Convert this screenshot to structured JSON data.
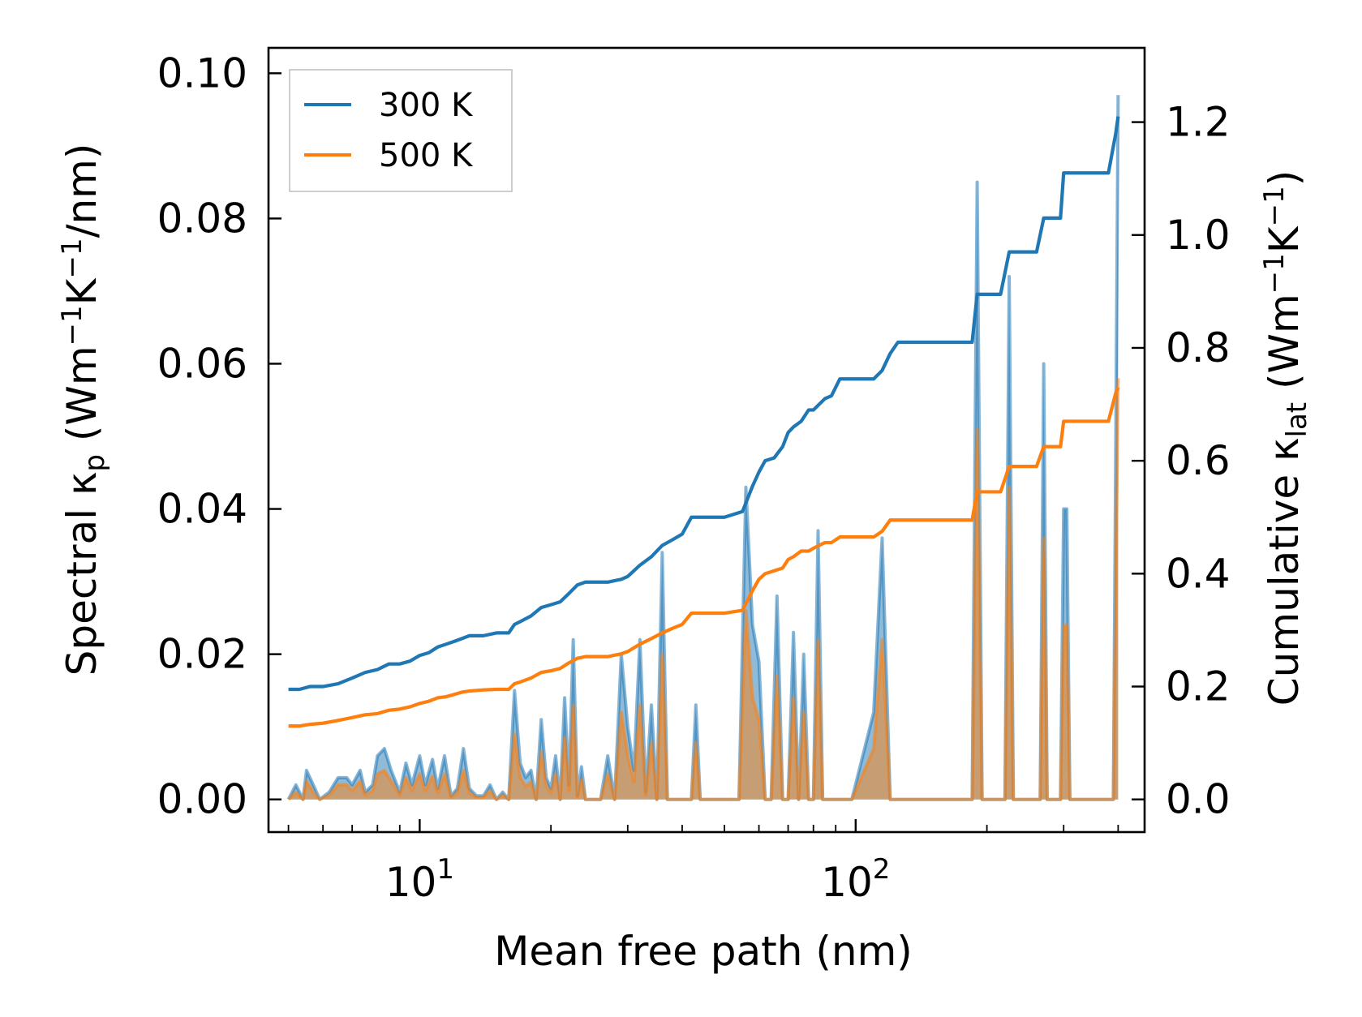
{
  "chart_data": {
    "type": "line",
    "xscale": "log",
    "xlim": [
      4.5,
      460
    ],
    "xlabel": "Mean free path (nm)",
    "xticks": [
      {
        "value": 10,
        "base": "10",
        "exp": "1"
      },
      {
        "value": 100,
        "base": "10",
        "exp": "2"
      }
    ],
    "left_axis": {
      "label_main": "Spectral κ",
      "label_sub": "p",
      "label_units_open": " (Wm",
      "label_sup1": "−1",
      "label_mid": "K",
      "label_sup2": "−1",
      "label_close": "/nm)",
      "ylim": [
        -0.0045,
        0.1035
      ],
      "ticks": [
        "0.00",
        "0.02",
        "0.04",
        "0.06",
        "0.08",
        "0.10"
      ],
      "tick_values": [
        0,
        0.02,
        0.04,
        0.06,
        0.08,
        0.1
      ]
    },
    "right_axis": {
      "label_main": "Cumulative κ",
      "label_sub": "lat",
      "label_units_open": " (Wm",
      "label_sup1": "−1",
      "label_mid": "K",
      "label_sup2": "−1",
      "label_close": ")",
      "ylim": [
        -0.0579,
        1.3316
      ],
      "ticks": [
        "0.0",
        "0.2",
        "0.4",
        "0.6",
        "0.8",
        "1.0",
        "1.2"
      ],
      "tick_values": [
        0,
        0.2,
        0.4,
        0.6,
        0.8,
        1.0,
        1.2
      ]
    },
    "legend": {
      "position": "top-left",
      "entries": [
        {
          "label": "300 K",
          "color": "#1f77b4"
        },
        {
          "label": "500 K",
          "color": "#ff7f0e"
        }
      ]
    },
    "colors": {
      "c300": "#1f77b4",
      "c500": "#ff7f0e"
    },
    "series": [
      {
        "name": "300 K",
        "kind": "cumulative",
        "axis": "right",
        "x": [
          5.0,
          5.3,
          5.6,
          6.0,
          6.5,
          7.0,
          7.5,
          8.0,
          8.5,
          9.0,
          9.5,
          10.0,
          10.5,
          11.0,
          11.5,
          12.0,
          12.5,
          13.0,
          14.0,
          15.0,
          16.0,
          16.5,
          17.0,
          18.0,
          19.0,
          20.0,
          21.0,
          22.0,
          23.0,
          24.0,
          25.0,
          27.0,
          29.0,
          30.0,
          32.0,
          34.0,
          36.0,
          38.0,
          40.0,
          42.0,
          43.0,
          50.0,
          55.0,
          58.0,
          60.0,
          62.0,
          65.0,
          68.0,
          70.0,
          72.0,
          75.0,
          78.0,
          80.0,
          85.0,
          88.0,
          92.0,
          95.0,
          100.0,
          110.0,
          115.0,
          120.0,
          125.0,
          140.0,
          185.0,
          190.0,
          215.0,
          225.0,
          260.0,
          270.0,
          295.0,
          300.0,
          340.0,
          360.0,
          380.0,
          395.0,
          400.0
        ],
        "y": [
          0.195,
          0.195,
          0.2,
          0.2,
          0.205,
          0.215,
          0.225,
          0.23,
          0.24,
          0.24,
          0.245,
          0.255,
          0.26,
          0.27,
          0.275,
          0.28,
          0.285,
          0.29,
          0.29,
          0.295,
          0.295,
          0.31,
          0.315,
          0.325,
          0.34,
          0.345,
          0.35,
          0.365,
          0.38,
          0.385,
          0.385,
          0.385,
          0.39,
          0.395,
          0.415,
          0.43,
          0.45,
          0.46,
          0.47,
          0.5,
          0.5,
          0.5,
          0.51,
          0.555,
          0.58,
          0.6,
          0.605,
          0.625,
          0.65,
          0.66,
          0.67,
          0.69,
          0.69,
          0.71,
          0.715,
          0.745,
          0.745,
          0.745,
          0.745,
          0.76,
          0.79,
          0.81,
          0.81,
          0.81,
          0.895,
          0.895,
          0.97,
          0.97,
          1.03,
          1.03,
          1.11,
          1.11,
          1.11,
          1.11,
          1.18,
          1.21
        ]
      },
      {
        "name": "500 K",
        "kind": "cumulative",
        "axis": "right",
        "x": [
          5.0,
          5.3,
          5.6,
          6.0,
          6.5,
          7.0,
          7.5,
          8.0,
          8.5,
          9.0,
          9.5,
          10.0,
          10.5,
          11.0,
          11.5,
          12.0,
          12.5,
          13.0,
          14.0,
          15.0,
          16.0,
          16.5,
          17.0,
          18.0,
          19.0,
          20.0,
          21.0,
          22.0,
          23.0,
          24.0,
          25.0,
          27.0,
          29.0,
          30.0,
          32.0,
          34.0,
          36.0,
          38.0,
          40.0,
          42.0,
          43.0,
          50.0,
          55.0,
          58.0,
          60.0,
          62.0,
          65.0,
          68.0,
          70.0,
          72.0,
          75.0,
          78.0,
          80.0,
          85.0,
          88.0,
          92.0,
          95.0,
          100.0,
          110.0,
          115.0,
          120.0,
          125.0,
          140.0,
          185.0,
          190.0,
          215.0,
          225.0,
          260.0,
          270.0,
          295.0,
          300.0,
          340.0,
          360.0,
          380.0,
          395.0,
          400.0
        ],
        "y": [
          0.13,
          0.13,
          0.133,
          0.135,
          0.14,
          0.145,
          0.15,
          0.152,
          0.158,
          0.16,
          0.164,
          0.17,
          0.174,
          0.18,
          0.182,
          0.186,
          0.19,
          0.192,
          0.194,
          0.195,
          0.195,
          0.205,
          0.208,
          0.215,
          0.225,
          0.228,
          0.232,
          0.242,
          0.25,
          0.253,
          0.253,
          0.253,
          0.258,
          0.262,
          0.275,
          0.285,
          0.295,
          0.303,
          0.31,
          0.33,
          0.33,
          0.33,
          0.335,
          0.37,
          0.39,
          0.4,
          0.405,
          0.41,
          0.425,
          0.43,
          0.44,
          0.44,
          0.445,
          0.455,
          0.455,
          0.465,
          0.465,
          0.465,
          0.465,
          0.475,
          0.495,
          0.495,
          0.495,
          0.495,
          0.545,
          0.545,
          0.59,
          0.59,
          0.625,
          0.625,
          0.67,
          0.67,
          0.67,
          0.67,
          0.72,
          0.73
        ]
      },
      {
        "name": "300 K",
        "kind": "spectral",
        "axis": "left",
        "x": [
          5.0,
          5.2,
          5.4,
          5.5,
          5.7,
          5.9,
          6.2,
          6.5,
          6.8,
          7.0,
          7.3,
          7.5,
          7.8,
          8.0,
          8.3,
          8.6,
          9.0,
          9.3,
          9.6,
          10.0,
          10.3,
          10.7,
          11.0,
          11.4,
          11.8,
          12.2,
          12.6,
          13.0,
          13.5,
          14.0,
          14.5,
          15.0,
          15.5,
          16.0,
          16.5,
          17.0,
          17.5,
          18.0,
          18.5,
          19.0,
          19.5,
          20.0,
          20.5,
          21.0,
          21.5,
          22.0,
          22.5,
          23.0,
          23.5,
          24.0,
          25.0,
          26.0,
          27.0,
          28.0,
          29.0,
          30.0,
          31.0,
          32.0,
          33.0,
          34.0,
          35.0,
          36.0,
          37.0,
          38.0,
          39.0,
          40.0,
          41.0,
          42.0,
          43.0,
          44.0,
          46.0,
          50.0,
          54.0,
          56.0,
          58.0,
          60.0,
          62.0,
          64.0,
          66.0,
          68.0,
          70.0,
          72.0,
          74.0,
          76.0,
          78.0,
          80.0,
          82.0,
          84.0,
          86.0,
          88.0,
          90.0,
          92.0,
          94.0,
          96.0,
          98.0,
          110.0,
          115.0,
          120.0,
          124.0,
          128.0,
          150.0,
          180.0,
          185.0,
          190.0,
          195.0,
          210.0,
          220.0,
          225.0,
          230.0,
          255.0,
          265.0,
          270.0,
          275.0,
          285.0,
          295.0,
          300.0,
          305.0,
          310.0,
          320.0,
          360.0,
          385.0,
          390.0,
          400.0
        ],
        "y": [
          0.0,
          0.002,
          0.0,
          0.004,
          0.002,
          0.0,
          0.001,
          0.003,
          0.003,
          0.002,
          0.004,
          0.001,
          0.002,
          0.006,
          0.007,
          0.004,
          0.001,
          0.005,
          0.002,
          0.006,
          0.002,
          0.0055,
          0.0015,
          0.006,
          0.0005,
          0.0015,
          0.007,
          0.0015,
          0.0005,
          0.0005,
          0.002,
          0.0,
          0.001,
          0.0,
          0.015,
          0.005,
          0.003,
          0.004,
          0.0,
          0.011,
          0.003,
          0.0015,
          0.006,
          0.0,
          0.014,
          0.002,
          0.022,
          0.0005,
          0.0045,
          0.0,
          0.0,
          0.0,
          0.006,
          0.0,
          0.02,
          0.01,
          0.004,
          0.022,
          0.001,
          0.013,
          0.0,
          0.034,
          0.0,
          0.0,
          0.0,
          0.0,
          0.0,
          0.0,
          0.013,
          0.0,
          0.0,
          0.0,
          0.0,
          0.043,
          0.024,
          0.019,
          0.0,
          0.0,
          0.028,
          0.0,
          0.0,
          0.023,
          0.0,
          0.02,
          0.0,
          0.0,
          0.037,
          0.0,
          0.0,
          0.0,
          0.0,
          0.0,
          0.0,
          0.0,
          0.0,
          0.012,
          0.036,
          0.0,
          0.0,
          0.0,
          0.0,
          0.0,
          0.0,
          0.085,
          0.0,
          0.0,
          0.0,
          0.072,
          0.0,
          0.0,
          0.0,
          0.06,
          0.0,
          0.0,
          0.0,
          0.04,
          0.04,
          0.0,
          0.0,
          0.0,
          0.0,
          0.0,
          0.097
        ]
      },
      {
        "name": "500 K",
        "kind": "spectral",
        "axis": "left",
        "x": [
          5.0,
          5.2,
          5.4,
          5.5,
          5.7,
          5.9,
          6.2,
          6.5,
          6.8,
          7.0,
          7.3,
          7.5,
          7.8,
          8.0,
          8.3,
          8.6,
          9.0,
          9.3,
          9.6,
          10.0,
          10.3,
          10.7,
          11.0,
          11.4,
          11.8,
          12.2,
          12.6,
          13.0,
          13.5,
          14.0,
          14.5,
          15.0,
          15.5,
          16.0,
          16.5,
          17.0,
          17.5,
          18.0,
          18.5,
          19.0,
          19.5,
          20.0,
          20.5,
          21.0,
          21.5,
          22.0,
          22.5,
          23.0,
          23.5,
          24.0,
          25.0,
          26.0,
          27.0,
          28.0,
          29.0,
          30.0,
          31.0,
          32.0,
          33.0,
          34.0,
          35.0,
          36.0,
          37.0,
          38.0,
          39.0,
          40.0,
          41.0,
          42.0,
          43.0,
          44.0,
          46.0,
          50.0,
          54.0,
          56.0,
          58.0,
          60.0,
          62.0,
          64.0,
          66.0,
          68.0,
          70.0,
          72.0,
          74.0,
          76.0,
          78.0,
          80.0,
          82.0,
          84.0,
          86.0,
          88.0,
          90.0,
          92.0,
          94.0,
          96.0,
          98.0,
          110.0,
          115.0,
          120.0,
          124.0,
          128.0,
          150.0,
          180.0,
          185.0,
          190.0,
          195.0,
          210.0,
          220.0,
          225.0,
          230.0,
          255.0,
          265.0,
          270.0,
          275.0,
          285.0,
          295.0,
          300.0,
          305.0,
          310.0,
          320.0,
          360.0,
          385.0,
          390.0,
          400.0
        ],
        "y": [
          0.0,
          0.001,
          0.0,
          0.0025,
          0.001,
          0.0,
          0.0006,
          0.002,
          0.002,
          0.0012,
          0.0025,
          0.0006,
          0.0012,
          0.0035,
          0.004,
          0.0025,
          0.0006,
          0.003,
          0.0012,
          0.0035,
          0.0012,
          0.0032,
          0.0009,
          0.0035,
          0.0003,
          0.0009,
          0.004,
          0.0009,
          0.0003,
          0.0003,
          0.0012,
          0.0,
          0.0006,
          0.0,
          0.009,
          0.003,
          0.0018,
          0.0024,
          0.0,
          0.0065,
          0.0018,
          0.0009,
          0.0035,
          0.0,
          0.0085,
          0.0012,
          0.013,
          0.0003,
          0.0027,
          0.0,
          0.0,
          0.0,
          0.0035,
          0.0,
          0.012,
          0.006,
          0.0024,
          0.013,
          0.0006,
          0.0078,
          0.0,
          0.02,
          0.0,
          0.0,
          0.0,
          0.0,
          0.0,
          0.0,
          0.0078,
          0.0,
          0.0,
          0.0,
          0.0,
          0.026,
          0.014,
          0.011,
          0.0,
          0.0,
          0.017,
          0.0,
          0.0,
          0.014,
          0.0,
          0.012,
          0.0,
          0.0,
          0.022,
          0.0,
          0.0,
          0.0,
          0.0,
          0.0,
          0.0,
          0.0,
          0.0,
          0.007,
          0.022,
          0.0,
          0.0,
          0.0,
          0.0,
          0.0,
          0.0,
          0.051,
          0.0,
          0.0,
          0.0,
          0.043,
          0.0,
          0.0,
          0.0,
          0.036,
          0.0,
          0.0,
          0.0,
          0.024,
          0.024,
          0.0,
          0.0,
          0.0,
          0.0,
          0.0,
          0.058
        ]
      }
    ]
  }
}
